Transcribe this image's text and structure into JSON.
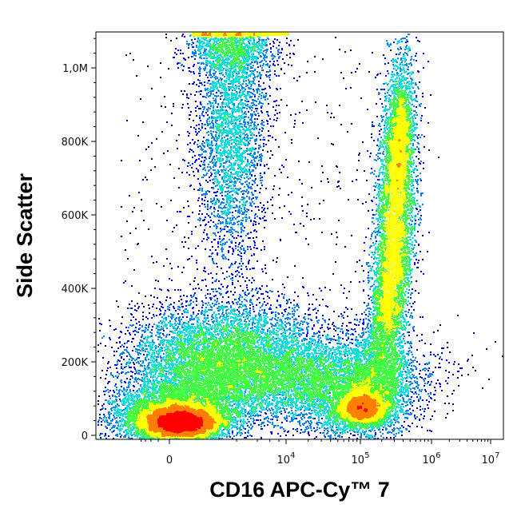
{
  "chart_data": {
    "type": "scatter",
    "style": "flow-cytometry density dot plot",
    "xlabel": "CD16 APC-Cy™ 7",
    "ylabel": "Side Scatter",
    "x_scale": "biexponential",
    "y_scale": "linear",
    "xlim": [
      -1000,
      10000000
    ],
    "ylim": [
      -10000,
      1100000
    ],
    "x_ticks": [
      {
        "value": 0,
        "label": "0"
      },
      {
        "value": 10000,
        "label": "10",
        "exp": "4"
      },
      {
        "value": 100000,
        "label": "10",
        "exp": "5"
      },
      {
        "value": 1000000,
        "label": "10",
        "exp": "6"
      },
      {
        "value": 10000000,
        "label": "10",
        "exp": "7"
      }
    ],
    "y_ticks": [
      {
        "value": 0,
        "label": "0"
      },
      {
        "value": 200000,
        "label": "200K"
      },
      {
        "value": 400000,
        "label": "400K"
      },
      {
        "value": 600000,
        "label": "600K"
      },
      {
        "value": 800000,
        "label": "800K"
      },
      {
        "value": 1000000,
        "label": "1,0M"
      }
    ],
    "color_scale": [
      "#00008f",
      "#0000ff",
      "#0080ff",
      "#00e0e0",
      "#40ff40",
      "#ffff00",
      "#ff8000",
      "#ff0000"
    ],
    "populations": [
      {
        "x_center": 0,
        "y_center": 40000,
        "density": "highest"
      },
      {
        "x_center": 3000,
        "y_center": 210000,
        "density": "medium"
      },
      {
        "x_center": 30000,
        "y_center": 130000,
        "density": "low"
      },
      {
        "x_center": 400000,
        "y_center": 560000,
        "density": "high"
      },
      {
        "x_center": 150000,
        "y_center": 80000,
        "density": "medium"
      },
      {
        "x_center": 3000,
        "y_center": 850000,
        "density": "low"
      }
    ],
    "grid": false,
    "legend": "none"
  }
}
